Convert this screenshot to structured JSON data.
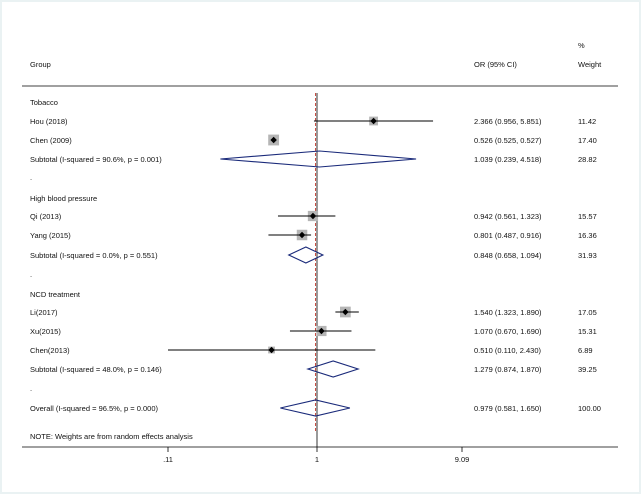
{
  "chart_data": {
    "type": "forest",
    "header": {
      "group": "Group",
      "or_ci": "OR (95% CI)",
      "weight_line1": "%",
      "weight_line2": "Weight"
    },
    "x_scale": "log",
    "xlim": [
      0.11,
      9.09
    ],
    "x_ticks": [
      ".11",
      "1",
      "9.09"
    ],
    "reference_line": 1,
    "overall_line": 0.979,
    "groups": [
      {
        "name": "Tobacco",
        "studies": [
          {
            "label": "Hou (2018)",
            "or": 2.366,
            "lo": 0.956,
            "hi": 5.851,
            "or_text": "2.366 (0.956, 5.851)",
            "weight": "11.42"
          },
          {
            "label": "Chen (2009)",
            "or": 0.526,
            "lo": 0.525,
            "hi": 0.527,
            "or_text": "0.526 (0.525, 0.527)",
            "weight": "17.40"
          }
        ],
        "subtotal": {
          "label": "Subtotal  (I-squared = 90.6%, p = 0.001)",
          "or": 1.039,
          "lo": 0.239,
          "hi": 4.518,
          "or_text": "1.039 (0.239, 4.518)",
          "weight": "28.82"
        }
      },
      {
        "name": "High blood pressure",
        "studies": [
          {
            "label": "Qi (2013)",
            "or": 0.942,
            "lo": 0.561,
            "hi": 1.323,
            "or_text": "0.942 (0.561, 1.323)",
            "weight": "15.57"
          },
          {
            "label": "Yang (2015)",
            "or": 0.801,
            "lo": 0.487,
            "hi": 0.916,
            "or_text": "0.801 (0.487, 0.916)",
            "weight": "16.36"
          }
        ],
        "subtotal": {
          "label": "Subtotal  (I-squared = 0.0%, p = 0.551)",
          "or": 0.848,
          "lo": 0.658,
          "hi": 1.094,
          "or_text": "0.848 (0.658, 1.094)",
          "weight": "31.93"
        }
      },
      {
        "name": "NCD treatment",
        "studies": [
          {
            "label": "Li(2017)",
            "or": 1.54,
            "lo": 1.323,
            "hi": 1.89,
            "or_text": "1.540 (1.323, 1.890)",
            "weight": "17.05"
          },
          {
            "label": "Xu(2015)",
            "or": 1.07,
            "lo": 0.67,
            "hi": 1.69,
            "or_text": "1.070 (0.670, 1.690)",
            "weight": "15.31"
          },
          {
            "label": "Chen(2013)",
            "or": 0.51,
            "lo": 0.11,
            "hi": 2.43,
            "or_text": "0.510 (0.110, 2.430)",
            "weight": "6.89"
          }
        ],
        "subtotal": {
          "label": "Subtotal  (I-squared = 48.0%, p = 0.146)",
          "or": 1.279,
          "lo": 0.874,
          "hi": 1.87,
          "or_text": "1.279 (0.874, 1.870)",
          "weight": "39.25"
        }
      }
    ],
    "overall": {
      "label": "Overall  (I-squared = 96.5%, p = 0.000)",
      "or": 0.979,
      "lo": 0.581,
      "hi": 1.65,
      "or_text": "0.979 (0.581, 1.650)",
      "weight": "100.00"
    },
    "note": "NOTE: Weights are from random effects analysis",
    "colors": {
      "diamond": "#1a2a7a",
      "overall_line": "#c0392b",
      "box": "#b5b5b5",
      "line": "#000000"
    }
  }
}
